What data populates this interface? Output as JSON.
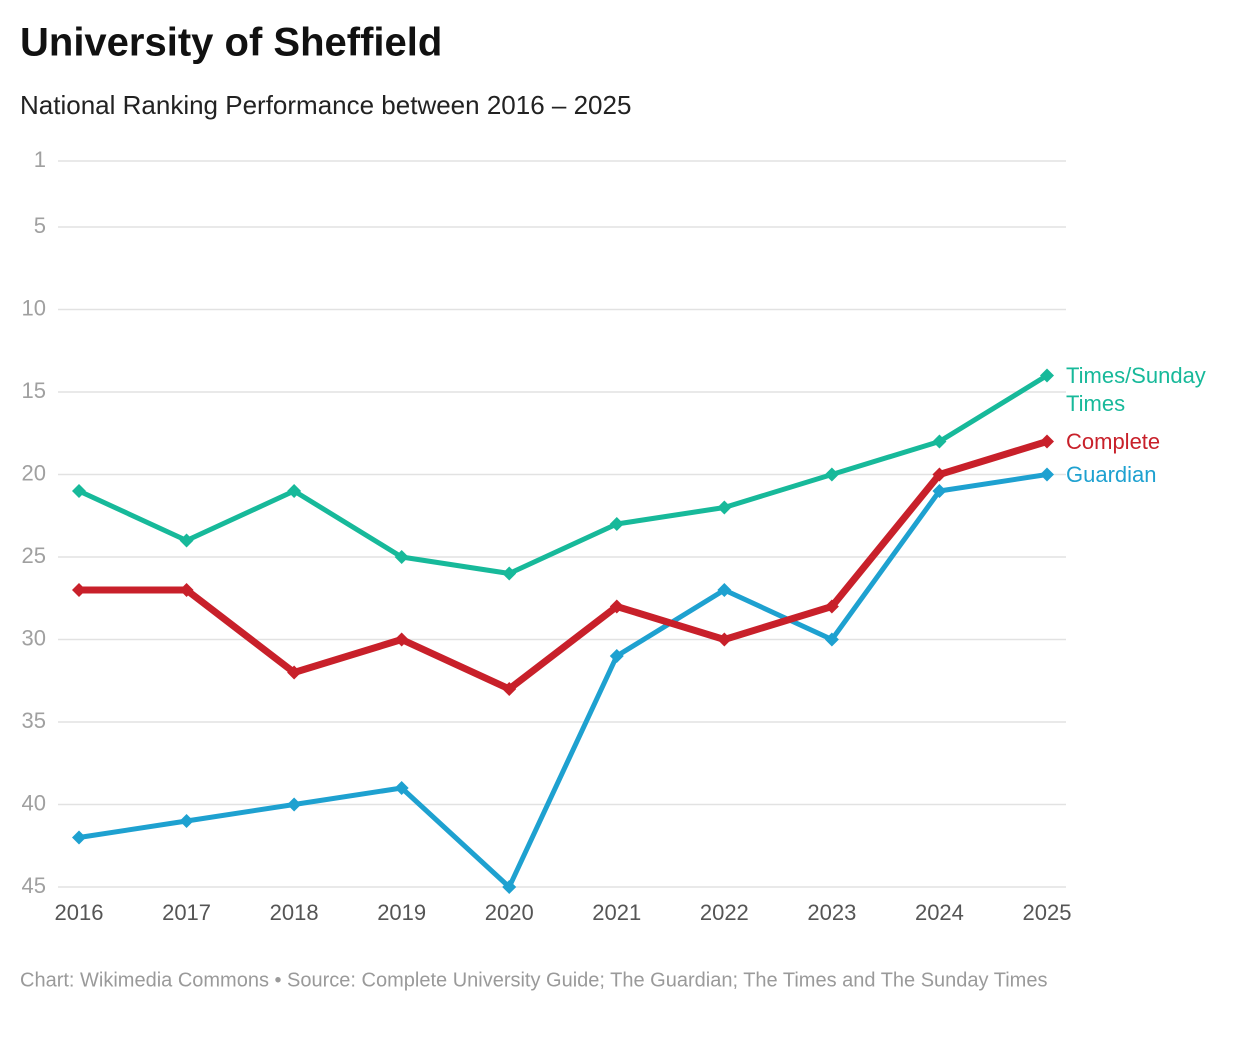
{
  "chart_data": {
    "type": "line",
    "title": "University of Sheffield",
    "subtitle": "National Ranking Performance between 2016 – 2025",
    "caption": "Chart: Wikimedia Commons • Source: Complete University Guide; The Guardian; The Times and The Sunday Times",
    "categories": [
      "2016",
      "2017",
      "2018",
      "2019",
      "2020",
      "2021",
      "2022",
      "2023",
      "2024",
      "2025"
    ],
    "series": [
      {
        "name": "Times/Sunday Times",
        "color": "#17b99a",
        "values": [
          21,
          24,
          21,
          25,
          26,
          23,
          22,
          20,
          18,
          14
        ]
      },
      {
        "name": "Complete",
        "color": "#c8202a",
        "values": [
          27,
          27,
          32,
          30,
          33,
          28,
          30,
          28,
          20,
          18
        ]
      },
      {
        "name": "Guardian",
        "color": "#1ea1d0",
        "values": [
          42,
          41,
          40,
          39,
          45,
          31,
          27,
          30,
          21,
          20
        ]
      }
    ],
    "ylim": [
      1,
      45
    ],
    "y_reversed": true,
    "yticks": [
      1,
      5,
      10,
      15,
      20,
      25,
      30,
      35,
      40,
      45
    ],
    "grid": true
  }
}
